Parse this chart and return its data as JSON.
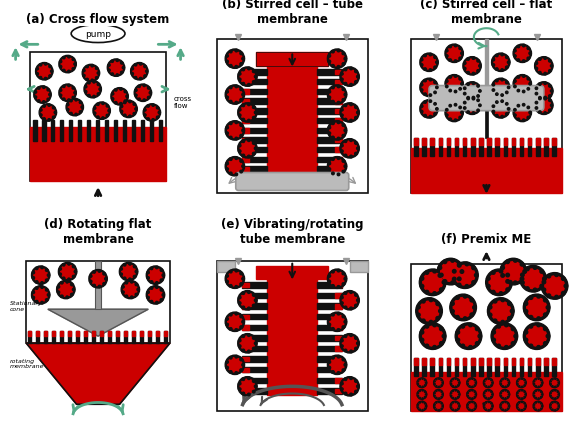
{
  "background_color": "#ffffff",
  "panel_labels": [
    "(a) Cross flow system",
    "(b) Stirred cell – tube\nmembrane",
    "(c) Stirred cell – flat\nmembrane",
    "(d) Rotating flat\nmembrane",
    "(e) Vibrating/rotating\ntube membrane",
    "(f) Premix ME"
  ],
  "label_fontsize": 8.5,
  "red_color": "#cc0000",
  "black_color": "#111111",
  "gray_color": "#999999",
  "light_gray": "#bbbbbb",
  "dark_gray": "#555555",
  "teal_color": "#55aa88"
}
